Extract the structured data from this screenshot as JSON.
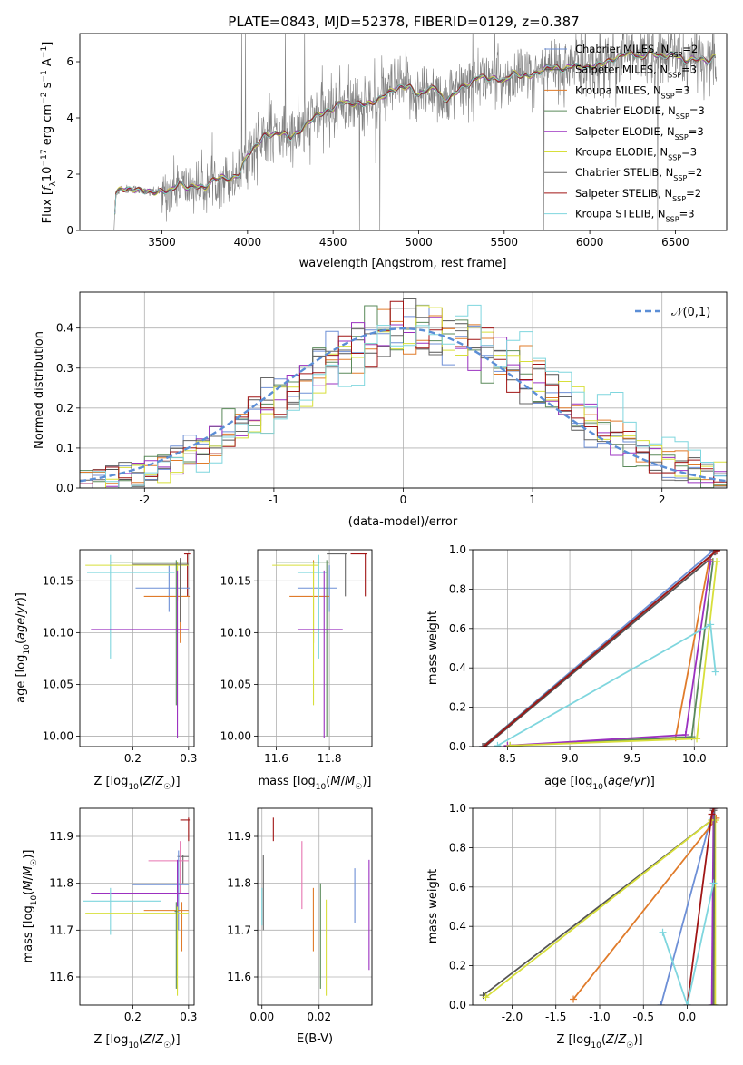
{
  "title": "PLATE=0843, MJD=52378, FIBERID=0129, z=0.387",
  "colors": {
    "Chabrier MILES": "#6d8fd6",
    "Salpeter MILES": "#555555",
    "Kroupa MILES": "#e07b2a",
    "Chabrier ELODIE": "#5a8a5a",
    "Salpeter ELODIE": "#9b30c0",
    "Kroupa ELODIE": "#d7df3a",
    "Chabrier STELIB": "#666666",
    "Salpeter STELIB": "#a01515",
    "Kroupa STELIB": "#7fd6de",
    "extra_pink": "#e675b0",
    "normal": "#5b8ed6",
    "data": "#808080"
  },
  "chart_data": [
    {
      "id": "spectrum",
      "type": "line",
      "title": "PLATE=0843, MJD=52378, FIBERID=0129, z=0.387",
      "xlabel": "wavelength [Angstrom, rest frame]",
      "ylabel": "Flux [f_λ 10^-17 erg cm^-2 s^-1 A^-1]",
      "xlim": [
        3020,
        6800
      ],
      "ylim": [
        0,
        7
      ],
      "xticks": [
        3500,
        4000,
        4500,
        5000,
        5500,
        6000,
        6500
      ],
      "yticks": [
        0,
        2,
        4,
        6
      ],
      "legend_position": "top-right",
      "legend": [
        "Chabrier MILES, N_SSP=2",
        "Salpeter MILES, N_SSP=3",
        "Kroupa MILES, N_SSP=3",
        "Chabrier ELODIE, N_SSP=3",
        "Salpeter ELODIE, N_SSP=3",
        "Kroupa ELODIE, N_SSP=3",
        "Chabrier STELIB, N_SSP=2",
        "Salpeter STELIB, N_SSP=2",
        "Kroupa STELIB, N_SSP=3"
      ],
      "model_continuum": {
        "x": [
          3220,
          3230,
          3260,
          3300,
          3350,
          3400,
          3450,
          3500,
          3550,
          3600,
          3650,
          3700,
          3750,
          3800,
          3850,
          3900,
          3950,
          4000,
          4050,
          4100,
          4150,
          4200,
          4250,
          4300,
          4350,
          4400,
          4450,
          4500,
          4550,
          4600,
          4650,
          4700,
          4750,
          4800,
          4850,
          4900,
          4950,
          5000,
          5050,
          5100,
          5150,
          5200,
          5250,
          5300,
          5350,
          5400,
          5450,
          5500,
          5550,
          5600,
          5650,
          5700,
          5750,
          5800,
          5850,
          5900,
          5950,
          6000,
          6050,
          6100,
          6150,
          6200,
          6250,
          6300,
          6350,
          6400,
          6450,
          6500,
          6550,
          6600,
          6650,
          6700,
          6730
        ],
        "y": [
          0,
          1.3,
          1.5,
          1.45,
          1.45,
          1.4,
          1.35,
          1.4,
          1.4,
          1.7,
          1.5,
          1.6,
          1.5,
          1.8,
          1.9,
          1.8,
          2.0,
          2.7,
          3.0,
          3.4,
          3.4,
          3.5,
          3.3,
          3.5,
          3.8,
          4.1,
          4.2,
          4.3,
          4.6,
          4.5,
          4.5,
          4.5,
          4.6,
          4.8,
          5.0,
          5.1,
          5.1,
          4.8,
          5.0,
          5.1,
          4.6,
          4.8,
          5.1,
          5.2,
          5.5,
          5.4,
          5.4,
          5.3,
          5.6,
          5.5,
          5.5,
          5.6,
          5.8,
          5.8,
          5.7,
          5.9,
          5.8,
          5.8,
          5.9,
          6.0,
          6.1,
          6.3,
          6.3,
          6.1,
          6.4,
          6.2,
          6.2,
          6.3,
          6.0,
          6.1,
          6.1,
          6.0,
          6.2
        ]
      }
    },
    {
      "id": "residuals",
      "type": "line",
      "xlabel": "(data-model)/error",
      "ylabel": "Normed distribution",
      "xlim": [
        -2.5,
        2.5
      ],
      "ylim": [
        0,
        0.49
      ],
      "xticks": [
        -2,
        -1,
        0,
        1,
        2
      ],
      "yticks": [
        0.0,
        0.1,
        0.2,
        0.3,
        0.4
      ],
      "legend_position": "top-right",
      "legend": [
        "𝒩(0,1)"
      ],
      "normal_curve": {
        "mean": 0,
        "sigma": 1
      },
      "histogram_bin_width": 0.1
    },
    {
      "id": "age_vs_Z",
      "type": "scatter",
      "xlabel": "Z [log10(Z/Z☉)]",
      "ylabel": "age  [log10(age/yr)]",
      "xlim": [
        0.105,
        0.31
      ],
      "ylim": [
        9.99,
        10.18
      ],
      "xticks": [
        0.2,
        0.3
      ],
      "yticks": [
        10.0,
        10.05,
        10.1,
        10.15
      ],
      "points": [
        {
          "series": "Salpeter STELIB",
          "x": 0.298,
          "y": 10.176,
          "xerr": [
            0.292,
            0.303
          ],
          "yerr": [
            10.135,
            10.176
          ]
        },
        {
          "series": "Chabrier MILES",
          "x": 0.265,
          "y": 10.143,
          "xerr": [
            0.205,
            0.302
          ],
          "yerr": [
            10.12,
            10.165
          ]
        },
        {
          "series": "Kroupa MILES",
          "x": 0.285,
          "y": 10.135,
          "xerr": [
            0.22,
            0.302
          ],
          "yerr": [
            10.09,
            10.17
          ]
        },
        {
          "series": "Kroupa STELIB",
          "x": 0.16,
          "y": 10.158,
          "xerr": [
            0.118,
            0.275
          ],
          "yerr": [
            10.075,
            10.175
          ]
        },
        {
          "series": "Kroupa ELODIE",
          "x": 0.28,
          "y": 10.165,
          "xerr": [
            0.115,
            0.3
          ],
          "yerr": [
            10.13,
            10.168
          ]
        },
        {
          "series": "Chabrier ELODIE",
          "x": 0.278,
          "y": 10.168,
          "xerr": [
            0.16,
            0.3
          ],
          "yerr": [
            10.03,
            10.17
          ]
        },
        {
          "series": "Salpeter ELODIE",
          "x": 0.28,
          "y": 10.103,
          "xerr": [
            0.125,
            0.3
          ],
          "yerr": [
            9.998,
            10.16
          ]
        },
        {
          "series": "Chabrier STELIB",
          "x": 0.285,
          "y": 10.166,
          "xerr": [
            0.2,
            0.3
          ],
          "yerr": [
            10.11,
            10.172
          ]
        }
      ]
    },
    {
      "id": "age_vs_mass",
      "type": "scatter",
      "xlabel": "mass [log10(M/M☉)]",
      "ylabel": "",
      "xlim": [
        11.53,
        11.96
      ],
      "ylim": [
        9.99,
        10.18
      ],
      "xticks": [
        11.6,
        11.8
      ],
      "yticks": [
        10.0,
        10.05,
        10.1,
        10.15
      ],
      "points": [
        {
          "series": "Salpeter STELIB",
          "x": 11.935,
          "y": 10.176,
          "xerr": [
            11.88,
            11.94
          ],
          "yerr": [
            10.135,
            10.176
          ]
        },
        {
          "series": "Chabrier STELIB",
          "x": 11.86,
          "y": 10.176,
          "xerr": [
            11.79,
            11.865
          ],
          "yerr": [
            10.135,
            10.176
          ]
        },
        {
          "series": "Chabrier MILES",
          "x": 11.8,
          "y": 10.143,
          "xerr": [
            11.68,
            11.83
          ],
          "yerr": [
            10.12,
            10.165
          ]
        },
        {
          "series": "Kroupa MILES",
          "x": 11.74,
          "y": 10.135,
          "xerr": [
            11.65,
            11.8
          ],
          "yerr": [
            10.09,
            10.17
          ]
        },
        {
          "series": "Kroupa STELIB",
          "x": 11.76,
          "y": 10.158,
          "xerr": [
            11.68,
            11.79
          ],
          "yerr": [
            10.075,
            10.175
          ]
        },
        {
          "series": "Kroupa ELODIE",
          "x": 11.74,
          "y": 10.165,
          "xerr": [
            11.585,
            11.76
          ],
          "yerr": [
            10.03,
            10.168
          ]
        },
        {
          "series": "Chabrier ELODIE",
          "x": 11.79,
          "y": 10.168,
          "xerr": [
            11.6,
            11.8
          ],
          "yerr": [
            10.0,
            10.17
          ]
        },
        {
          "series": "Salpeter ELODIE",
          "x": 11.78,
          "y": 10.103,
          "xerr": [
            11.68,
            11.85
          ],
          "yerr": [
            9.998,
            10.16
          ]
        }
      ]
    },
    {
      "id": "massweight_vs_age",
      "type": "line",
      "xlabel": "age  [log10(age/yr)]",
      "ylabel": "mass weight",
      "xlim": [
        8.22,
        10.26
      ],
      "ylim": [
        0,
        1
      ],
      "xticks": [
        8.5,
        9.0,
        9.5,
        10.0
      ],
      "yticks": [
        0.0,
        0.2,
        0.4,
        0.6,
        0.8,
        1.0
      ],
      "series": [
        {
          "name": "Chabrier MILES",
          "x": [
            8.3,
            10.15
          ],
          "y": [
            0.0,
            0.995
          ]
        },
        {
          "name": "Salpeter MILES",
          "x": [
            8.32,
            10.12,
            10.16
          ],
          "y": [
            0.0,
            0.95,
            0.99
          ]
        },
        {
          "name": "Kroupa MILES",
          "x": [
            8.5,
            9.85,
            10.12
          ],
          "y": [
            0.005,
            0.045,
            0.95
          ]
        },
        {
          "name": "Chabrier ELODIE",
          "x": [
            8.52,
            9.98,
            10.15
          ],
          "y": [
            0.005,
            0.05,
            0.94
          ]
        },
        {
          "name": "Salpeter ELODIE",
          "x": [
            8.5,
            9.93,
            10.13
          ],
          "y": [
            0.005,
            0.06,
            0.94
          ]
        },
        {
          "name": "Kroupa ELODIE",
          "x": [
            8.52,
            10.02,
            10.18
          ],
          "y": [
            0.005,
            0.04,
            0.94
          ]
        },
        {
          "name": "Chabrier STELIB",
          "x": [
            8.3,
            10.17
          ],
          "y": [
            0.0,
            0.99
          ]
        },
        {
          "name": "Salpeter STELIB",
          "x": [
            8.31,
            10.18
          ],
          "y": [
            0.0,
            0.995
          ]
        },
        {
          "name": "Kroupa STELIB",
          "x": [
            8.42,
            10.13,
            10.17
          ],
          "y": [
            0.005,
            0.62,
            0.38
          ]
        }
      ]
    },
    {
      "id": "mass_vs_Z",
      "type": "scatter",
      "xlabel": "Z [log10(Z/Z☉)]",
      "ylabel": "mass [log10(M/M☉)]",
      "xlim": [
        0.105,
        0.31
      ],
      "ylim": [
        11.54,
        11.96
      ],
      "xticks": [
        0.2,
        0.3
      ],
      "yticks": [
        11.6,
        11.7,
        11.8,
        11.9
      ],
      "points": [
        {
          "series": "Salpeter STELIB",
          "x": 0.3,
          "y": 11.935,
          "xerr": [
            0.285,
            0.302
          ],
          "yerr": [
            11.89,
            11.94
          ]
        },
        {
          "series": "Chabrier STELIB",
          "x": 0.29,
          "y": 11.857,
          "xerr": [
            0.28,
            0.3
          ],
          "yerr": [
            11.8,
            11.86
          ]
        },
        {
          "series": "extra_pink",
          "x": 0.285,
          "y": 11.848,
          "xerr": [
            0.228,
            0.3
          ],
          "yerr": [
            11.78,
            11.89
          ]
        },
        {
          "series": "Chabrier MILES",
          "x": 0.282,
          "y": 11.797,
          "xerr": [
            0.2,
            0.3
          ],
          "yerr": [
            11.7,
            11.87
          ]
        },
        {
          "series": "Salpeter ELODIE",
          "x": 0.28,
          "y": 11.779,
          "xerr": [
            0.125,
            0.3
          ],
          "yerr": [
            11.68,
            11.85
          ]
        },
        {
          "series": "Kroupa STELIB",
          "x": 0.16,
          "y": 11.762,
          "xerr": [
            0.11,
            0.25
          ],
          "yerr": [
            11.69,
            11.79
          ]
        },
        {
          "series": "Kroupa MILES",
          "x": 0.288,
          "y": 11.742,
          "xerr": [
            0.22,
            0.3
          ],
          "yerr": [
            11.655,
            11.76
          ]
        },
        {
          "series": "Kroupa ELODIE",
          "x": 0.28,
          "y": 11.736,
          "xerr": [
            0.115,
            0.3
          ],
          "yerr": [
            11.56,
            11.75
          ]
        },
        {
          "series": "Chabrier ELODIE",
          "x": 0.278,
          "y": 11.74,
          "xerr": [
            0.275,
            0.28
          ],
          "yerr": [
            11.575,
            11.76
          ]
        }
      ]
    },
    {
      "id": "mass_vs_EBV",
      "type": "scatter",
      "xlabel": "E(B-V)",
      "ylabel": "",
      "xlim": [
        -0.0015,
        0.0385
      ],
      "ylim": [
        11.54,
        11.96
      ],
      "xticks": [
        0.0,
        0.02
      ],
      "yticks": [
        11.6,
        11.7,
        11.8,
        11.9
      ],
      "points": [
        {
          "series": "Salpeter STELIB",
          "x": 0.004,
          "y": 11.935,
          "yerr": [
            11.89,
            11.94
          ]
        },
        {
          "series": "Chabrier STELIB",
          "x": 0.0005,
          "y": 11.8,
          "yerr": [
            11.7,
            11.86
          ]
        },
        {
          "series": "Kroupa STELIB",
          "x": 0.0,
          "y": 11.75,
          "yerr": [
            11.71,
            11.79
          ]
        },
        {
          "series": "extra_pink",
          "x": 0.014,
          "y": 11.82,
          "yerr": [
            11.745,
            11.89
          ]
        },
        {
          "series": "Kroupa MILES",
          "x": 0.018,
          "y": 11.72,
          "yerr": [
            11.655,
            11.79
          ]
        },
        {
          "series": "Chabrier ELODIE",
          "x": 0.0205,
          "y": 11.68,
          "yerr": [
            11.575,
            11.8
          ]
        },
        {
          "series": "Kroupa ELODIE",
          "x": 0.0225,
          "y": 11.69,
          "yerr": [
            11.56,
            11.765
          ]
        },
        {
          "series": "Chabrier MILES",
          "x": 0.0325,
          "y": 11.77,
          "yerr": [
            11.715,
            11.832
          ]
        },
        {
          "series": "Salpeter ELODIE",
          "x": 0.0375,
          "y": 11.73,
          "yerr": [
            11.615,
            11.85
          ]
        }
      ]
    },
    {
      "id": "massweight_vs_Z",
      "type": "line",
      "xlabel": "Z [log10(Z/Z☉)]",
      "ylabel": "mass weight",
      "xlim": [
        -2.45,
        0.45
      ],
      "ylim": [
        0,
        1
      ],
      "xticks": [
        -2.0,
        -1.5,
        -1.0,
        -0.5,
        0.0
      ],
      "yticks": [
        0.0,
        0.2,
        0.4,
        0.6,
        0.8,
        1.0
      ],
      "series": [
        {
          "name": "Chabrier MILES",
          "x": [
            -0.3,
            0.3
          ],
          "y": [
            0.0,
            1.0
          ]
        },
        {
          "name": "Salpeter MILES",
          "x": [
            -2.33,
            0.28,
            0.3
          ],
          "y": [
            0.05,
            0.94,
            0.99
          ]
        },
        {
          "name": "Kroupa MILES",
          "x": [
            -1.3,
            0.3,
            0.33
          ],
          "y": [
            0.03,
            0.93,
            0.95
          ]
        },
        {
          "name": "Chabrier ELODIE",
          "x": [
            0.3,
            0.3
          ],
          "y": [
            0.0,
            0.94
          ]
        },
        {
          "name": "Salpeter ELODIE",
          "x": [
            0.28,
            0.3
          ],
          "y": [
            0.0,
            1.0
          ]
        },
        {
          "name": "Kroupa ELODIE",
          "x": [
            -2.3,
            0.28,
            0.32,
            0.32
          ],
          "y": [
            0.04,
            0.94,
            0.94,
            0.0
          ]
        },
        {
          "name": "Chabrier STELIB",
          "x": [
            0.3,
            0.31
          ],
          "y": [
            0.0,
            1.0
          ]
        },
        {
          "name": "Salpeter STELIB",
          "x": [
            0.0,
            0.28,
            0.3
          ],
          "y": [
            0.0,
            0.97,
            1.0
          ]
        },
        {
          "name": "Kroupa STELIB",
          "x": [
            -0.28,
            0.0,
            0.3
          ],
          "y": [
            0.37,
            0.0,
            0.62
          ]
        }
      ]
    }
  ]
}
